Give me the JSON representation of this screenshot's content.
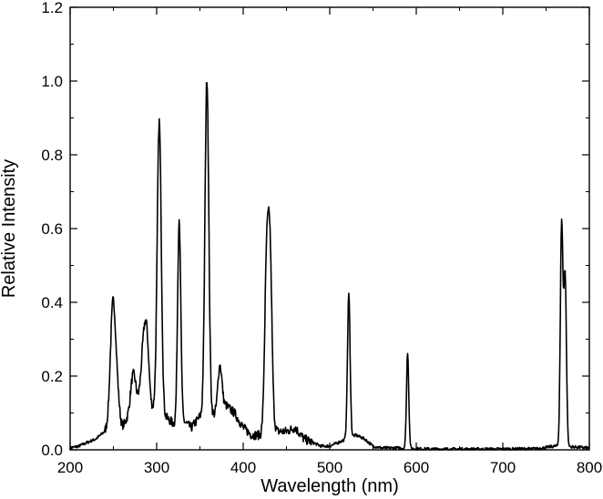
{
  "chart_data": {
    "type": "line",
    "xlabel": "Wavelength (nm)",
    "ylabel": "Relative Intensity",
    "xlim": [
      200,
      800
    ],
    "ylim": [
      0,
      1.2
    ],
    "x_ticks": [
      200,
      300,
      400,
      500,
      600,
      700,
      800
    ],
    "x_tick_labels": [
      "200",
      "300",
      "400",
      "500",
      "600",
      "700",
      "800"
    ],
    "y_ticks": [
      0,
      0.2,
      0.4,
      0.6,
      0.8,
      1.0,
      1.2
    ],
    "y_tick_labels": [
      "0.0",
      "0.2",
      "0.4",
      "0.6",
      "0.8",
      "1.0",
      "1.2"
    ],
    "grid": false,
    "legend": "none",
    "line_color": "#000000",
    "baseline": [
      [
        200,
        0.005
      ],
      [
        210,
        0.01
      ],
      [
        220,
        0.02
      ],
      [
        230,
        0.03
      ],
      [
        240,
        0.05
      ],
      [
        250,
        0.08
      ],
      [
        260,
        0.06
      ],
      [
        270,
        0.1
      ],
      [
        280,
        0.12
      ],
      [
        290,
        0.1
      ],
      [
        300,
        0.12
      ],
      [
        310,
        0.09
      ],
      [
        320,
        0.07
      ],
      [
        330,
        0.08
      ],
      [
        340,
        0.06
      ],
      [
        350,
        0.09
      ],
      [
        360,
        0.1
      ],
      [
        370,
        0.09
      ],
      [
        380,
        0.12
      ],
      [
        390,
        0.1
      ],
      [
        400,
        0.06
      ],
      [
        410,
        0.04
      ],
      [
        420,
        0.04
      ],
      [
        430,
        0.08
      ],
      [
        440,
        0.05
      ],
      [
        450,
        0.05
      ],
      [
        460,
        0.06
      ],
      [
        470,
        0.03
      ],
      [
        480,
        0.02
      ],
      [
        490,
        0.01
      ],
      [
        500,
        0.01
      ],
      [
        510,
        0.02
      ],
      [
        520,
        0.03
      ],
      [
        530,
        0.04
      ],
      [
        540,
        0.03
      ],
      [
        550,
        0.01
      ],
      [
        560,
        0.005
      ],
      [
        580,
        0.005
      ],
      [
        600,
        0.003
      ],
      [
        620,
        0.002
      ],
      [
        650,
        0.002
      ],
      [
        700,
        0.002
      ],
      [
        740,
        0.003
      ],
      [
        760,
        0.01
      ],
      [
        780,
        0.008
      ],
      [
        800,
        0.005
      ]
    ],
    "peaks": [
      {
        "center": 249,
        "height": 0.27,
        "width": 2.8
      },
      {
        "center": 253,
        "height": 0.12,
        "width": 3
      },
      {
        "center": 273,
        "height": 0.1,
        "width": 3
      },
      {
        "center": 285,
        "height": 0.17,
        "width": 3
      },
      {
        "center": 289,
        "height": 0.15,
        "width": 2.5
      },
      {
        "center": 303,
        "height": 0.78,
        "width": 2.3
      },
      {
        "center": 326,
        "height": 0.55,
        "width": 1.8
      },
      {
        "center": 358,
        "height": 0.91,
        "width": 2.2
      },
      {
        "center": 373,
        "height": 0.13,
        "width": 2.5
      },
      {
        "center": 427,
        "height": 0.42,
        "width": 2.2
      },
      {
        "center": 431,
        "height": 0.44,
        "width": 2.2
      },
      {
        "center": 522,
        "height": 0.39,
        "width": 1.5
      },
      {
        "center": 590,
        "height": 0.26,
        "width": 1.3
      },
      {
        "center": 768,
        "height": 0.6,
        "width": 1.5
      },
      {
        "center": 772,
        "height": 0.46,
        "width": 1.5
      }
    ]
  }
}
